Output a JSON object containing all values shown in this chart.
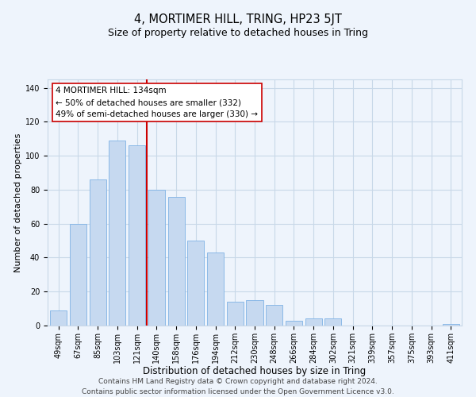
{
  "title": "4, MORTIMER HILL, TRING, HP23 5JT",
  "subtitle": "Size of property relative to detached houses in Tring",
  "xlabel": "Distribution of detached houses by size in Tring",
  "ylabel": "Number of detached properties",
  "categories": [
    "49sqm",
    "67sqm",
    "85sqm",
    "103sqm",
    "121sqm",
    "140sqm",
    "158sqm",
    "176sqm",
    "194sqm",
    "212sqm",
    "230sqm",
    "248sqm",
    "266sqm",
    "284sqm",
    "302sqm",
    "321sqm",
    "339sqm",
    "357sqm",
    "375sqm",
    "393sqm",
    "411sqm"
  ],
  "values": [
    9,
    60,
    86,
    109,
    106,
    80,
    76,
    50,
    43,
    14,
    15,
    12,
    3,
    4,
    4,
    0,
    0,
    0,
    0,
    0,
    1
  ],
  "bar_color": "#c6d9f0",
  "bar_edge_color": "#7fb2e5",
  "reference_line_label": "4 MORTIMER HILL: 134sqm",
  "annotation_line1": "← 50% of detached houses are smaller (332)",
  "annotation_line2": "49% of semi-detached houses are larger (330) →",
  "annotation_box_edge_color": "#cc0000",
  "annotation_box_facecolor": "#ffffff",
  "vline_color": "#cc0000",
  "ylim": [
    0,
    145
  ],
  "yticks": [
    0,
    20,
    40,
    60,
    80,
    100,
    120,
    140
  ],
  "grid_color": "#c8d8e8",
  "footer_line1": "Contains HM Land Registry data © Crown copyright and database right 2024.",
  "footer_line2": "Contains public sector information licensed under the Open Government Licence v3.0.",
  "title_fontsize": 10.5,
  "subtitle_fontsize": 9,
  "xlabel_fontsize": 8.5,
  "ylabel_fontsize": 8,
  "tick_fontsize": 7,
  "annotation_fontsize": 7.5,
  "footer_fontsize": 6.5,
  "background_color": "#eef4fc"
}
